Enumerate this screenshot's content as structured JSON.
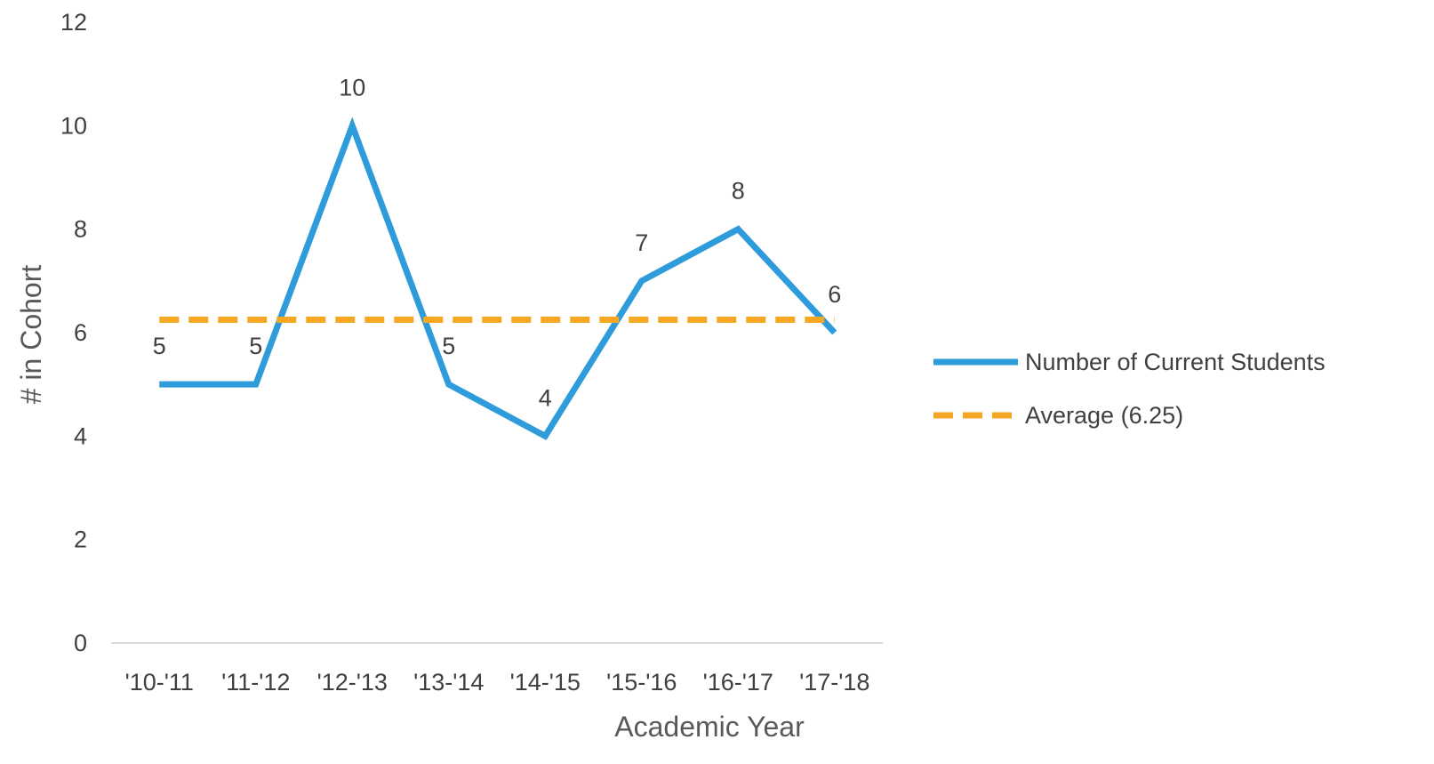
{
  "chart_data": {
    "type": "line",
    "title": "",
    "xlabel": "Academic Year",
    "ylabel": "# in Cohort",
    "categories": [
      "'10-'11",
      "'11-'12",
      "'12-'13",
      "'13-'14",
      "'14-'15",
      "'15-'16",
      "'16-'17",
      "'17-'18"
    ],
    "ylim": [
      0,
      12
    ],
    "yticks": [
      0,
      2,
      4,
      6,
      8,
      10,
      12
    ],
    "grid": false,
    "legend_position": "right",
    "series": [
      {
        "name": "Number of Current Students",
        "values": [
          5,
          5,
          10,
          5,
          4,
          7,
          8,
          6
        ],
        "data_labels": [
          "5",
          "5",
          "10",
          "5",
          "4",
          "7",
          "8",
          "6"
        ],
        "color": "#2E9BDA",
        "style": "solid"
      },
      {
        "name": "Average (6.25)",
        "values": [
          6.25,
          6.25,
          6.25,
          6.25,
          6.25,
          6.25,
          6.25,
          6.25
        ],
        "color": "#F5A623",
        "style": "dashed"
      }
    ]
  }
}
